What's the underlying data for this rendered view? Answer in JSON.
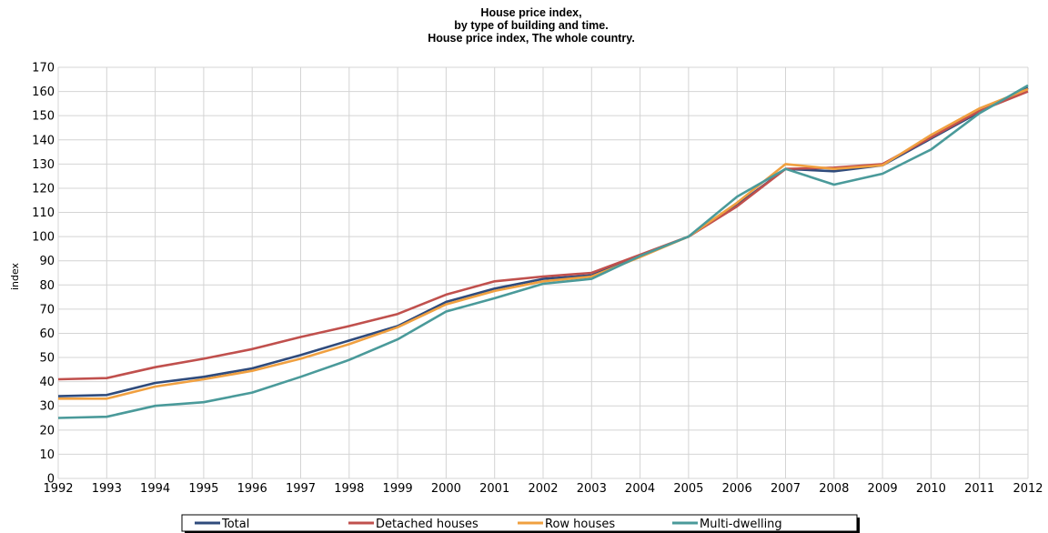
{
  "chart_data": {
    "type": "line",
    "title_lines": [
      "House price index,",
      "by type of building and time.",
      "House price index, The whole country."
    ],
    "ylabel": "index",
    "xlabel": "",
    "x": [
      "1992",
      "1993",
      "1994",
      "1995",
      "1996",
      "1997",
      "1998",
      "1999",
      "2000",
      "2001",
      "2002",
      "2003",
      "2004",
      "2005",
      "2006",
      "2007",
      "2008",
      "2009",
      "2010",
      "2011",
      "2012"
    ],
    "ylim": [
      0,
      170
    ],
    "yticks": [
      0,
      10,
      20,
      30,
      40,
      50,
      60,
      70,
      80,
      90,
      100,
      110,
      120,
      130,
      140,
      150,
      160,
      170
    ],
    "grid": true,
    "legend_placement": "bottom",
    "series": [
      {
        "name": "Total",
        "color": "#2f4b7c",
        "values": [
          34,
          34.5,
          39.5,
          42,
          45.5,
          51,
          57,
          63,
          73,
          78.5,
          82.5,
          84,
          92,
          100,
          113,
          128,
          127,
          129.5,
          140.5,
          151.5,
          161.5
        ]
      },
      {
        "name": "Detached houses",
        "color": "#c0504d",
        "values": [
          41,
          41.5,
          46,
          49.5,
          53.5,
          58.5,
          63,
          68,
          76,
          81.5,
          83.5,
          85,
          92.5,
          100,
          112.5,
          128,
          128.5,
          130,
          141,
          152,
          160
        ]
      },
      {
        "name": "Row houses",
        "color": "#f0a040",
        "values": [
          33,
          33,
          38,
          41,
          44.5,
          49.5,
          55.5,
          62.5,
          72,
          77.5,
          81.5,
          83.5,
          91.5,
          100,
          114,
          130,
          128,
          129.5,
          142,
          153,
          161
        ]
      },
      {
        "name": "Multi-dwelling",
        "color": "#4a9a9a",
        "values": [
          25,
          25.5,
          30,
          31.5,
          35.5,
          42,
          49,
          57.5,
          69,
          74.5,
          80.5,
          82.5,
          92,
          100,
          116.5,
          128,
          121.5,
          126,
          136,
          151,
          162.5
        ]
      }
    ]
  }
}
